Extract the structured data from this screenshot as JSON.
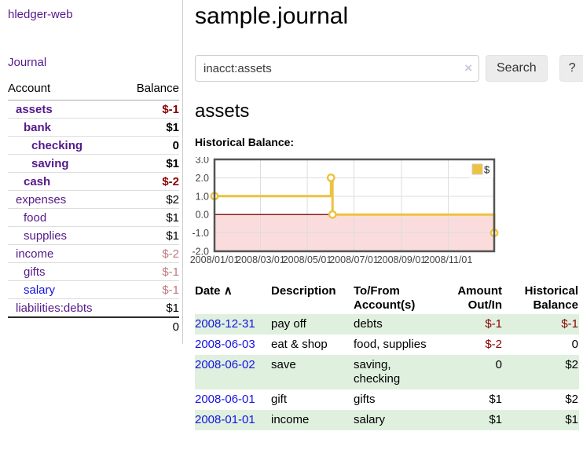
{
  "app": {
    "title": "hledger-web"
  },
  "colors": {
    "link_purple": "#551a8b",
    "link_blue": "#1414e0",
    "negative_strong": "#8b0000",
    "negative_soft": "#bd7a7a",
    "row_stripe_green": "#dff0df",
    "series_gold": "#edc240",
    "chart_negative_fill": "#fbdcdc",
    "chart_zero_line": "#8b1c1c",
    "chart_border": "#545454",
    "grid_line": "#dddddd",
    "button_bg": "#ececec"
  },
  "sidebar": {
    "journal_link": "Journal",
    "table": {
      "account_header": "Account",
      "balance_header": "Balance",
      "rows": [
        {
          "name": "assets",
          "depth": 0,
          "balance": "$-1",
          "bold": true,
          "value_color": "neg-strong"
        },
        {
          "name": "bank",
          "depth": 1,
          "balance": "$1",
          "bold": true
        },
        {
          "name": "checking",
          "depth": 2,
          "balance": "0",
          "bold": true
        },
        {
          "name": "saving",
          "depth": 2,
          "balance": "$1",
          "bold": true
        },
        {
          "name": "cash",
          "depth": 1,
          "balance": "$-2",
          "bold": true,
          "value_color": "neg-strong"
        },
        {
          "name": "expenses",
          "depth": 0,
          "balance": "$2"
        },
        {
          "name": "food",
          "depth": 1,
          "balance": "$1"
        },
        {
          "name": "supplies",
          "depth": 1,
          "balance": "$1"
        },
        {
          "name": "income",
          "depth": 0,
          "balance": "$-2",
          "value_color": "neg-soft"
        },
        {
          "name": "gifts",
          "depth": 1,
          "balance": "$-1",
          "value_color": "neg-soft"
        },
        {
          "name": "salary",
          "depth": 1,
          "balance": "$-1",
          "value_color": "neg-soft",
          "link_color": "blue"
        },
        {
          "name": "liabilities:debts",
          "depth": 0,
          "balance": "$1"
        }
      ],
      "total": "0"
    }
  },
  "header": {
    "title": "sample.journal"
  },
  "search": {
    "value": "inacct:assets",
    "clear_icon": "×",
    "button_label": "Search",
    "help_label": "?"
  },
  "main": {
    "account_title": "assets",
    "chart_label": "Historical Balance:"
  },
  "chart_data": {
    "type": "line",
    "step": true,
    "title": "Historical Balance",
    "legend_position": "top-right",
    "grid": true,
    "negative_region_shaded": true,
    "x_range": [
      "2008-01-01",
      "2008-12-31"
    ],
    "y_range": [
      -2,
      3
    ],
    "y_ticks": [
      3,
      2,
      1,
      0,
      -1,
      -2
    ],
    "x_ticks": [
      {
        "date": "2008-01-01",
        "label": "2008/01/01"
      },
      {
        "date": "2008-03-01",
        "label": "2008/03/01"
      },
      {
        "date": "2008-05-01",
        "label": "2008/05/01"
      },
      {
        "date": "2008-07-01",
        "label": "2008/07/01"
      },
      {
        "date": "2008-09-01",
        "label": "2008/09/01"
      },
      {
        "date": "2008-11-01",
        "label": "2008/11/01"
      }
    ],
    "series": [
      {
        "name": "$",
        "points": [
          {
            "x": "2008-01-01",
            "y": 1
          },
          {
            "x": "2008-06-01",
            "y": 2
          },
          {
            "x": "2008-06-03",
            "y": 0
          },
          {
            "x": "2008-12-31",
            "y": -1
          }
        ]
      }
    ]
  },
  "register": {
    "sort_icon": "∧",
    "columns": {
      "date": "Date",
      "description": "Description",
      "accounts": "To/From Account(s)",
      "amount": "Amount Out/In",
      "balance": "Historical Balance"
    },
    "rows": [
      {
        "date": "2008-12-31",
        "description": "pay off",
        "accounts": "debts",
        "amount": "$-1",
        "amount_negative": true,
        "balance": "$-1",
        "balance_negative": true
      },
      {
        "date": "2008-06-03",
        "description": "eat & shop",
        "accounts": "food, supplies",
        "amount": "$-2",
        "amount_negative": true,
        "balance": "0",
        "balance_negative": false
      },
      {
        "date": "2008-06-02",
        "description": "save",
        "accounts": "saving, checking",
        "amount": "0",
        "amount_negative": false,
        "balance": "$2",
        "balance_negative": false
      },
      {
        "date": "2008-06-01",
        "description": "gift",
        "accounts": "gifts",
        "amount": "$1",
        "amount_negative": false,
        "balance": "$2",
        "balance_negative": false
      },
      {
        "date": "2008-01-01",
        "description": "income",
        "accounts": "salary",
        "amount": "$1",
        "amount_negative": false,
        "balance": "$1",
        "balance_negative": false
      }
    ]
  }
}
